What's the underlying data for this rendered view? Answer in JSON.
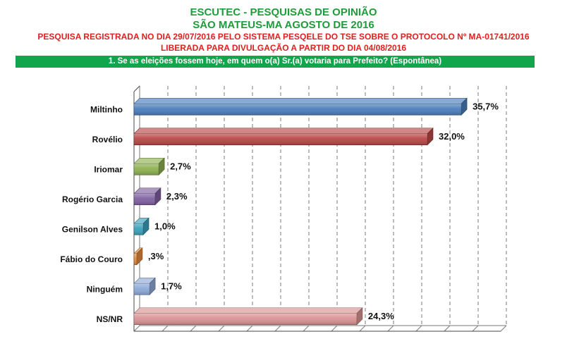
{
  "header": {
    "title": "ESCUTEC - PESQUISAS DE OPINIÃO",
    "subtitle": "SÃO MATEUS-MA AGOSTO DE 2016",
    "registration": "PESQUISA REGISTRADA NO DIA 29/07/2016 PELO SISTEMA PESQELE DO TSE SOBRE O PROTOCOLO Nº MA-01741/2016",
    "release": "LIBERADA PARA DIVULGAÇÃO A PARTIR DO DIA 04/08/2016",
    "question": "1. Se as eleições fossem hoje, em quem o(a) Sr.(a) votaria para Prefeito? (Espontânea)"
  },
  "chart_data": {
    "type": "bar",
    "orientation": "horizontal",
    "categories": [
      "Miltinho",
      "Rovélio",
      "Iriomar",
      "Rogério Garcia",
      "Genilson Alves",
      "Fábio do Couro",
      "Ninguém",
      "NS/NR"
    ],
    "values": [
      35.7,
      32.0,
      2.7,
      2.3,
      1.0,
      0.3,
      1.7,
      24.3
    ],
    "labels": [
      "35,7%",
      "32,0%",
      "2,7%",
      "2,3%",
      "1,0%",
      ",3%",
      "1,7%",
      "24,3%"
    ],
    "colors": [
      "#4a7ebb",
      "#b94646",
      "#8db04f",
      "#7e60a0",
      "#3aa0bc",
      "#e48a3a",
      "#8ea9d8",
      "#d99292"
    ],
    "xlim": [
      0,
      40
    ],
    "grid": true,
    "title": "",
    "xlabel": "",
    "ylabel": ""
  }
}
